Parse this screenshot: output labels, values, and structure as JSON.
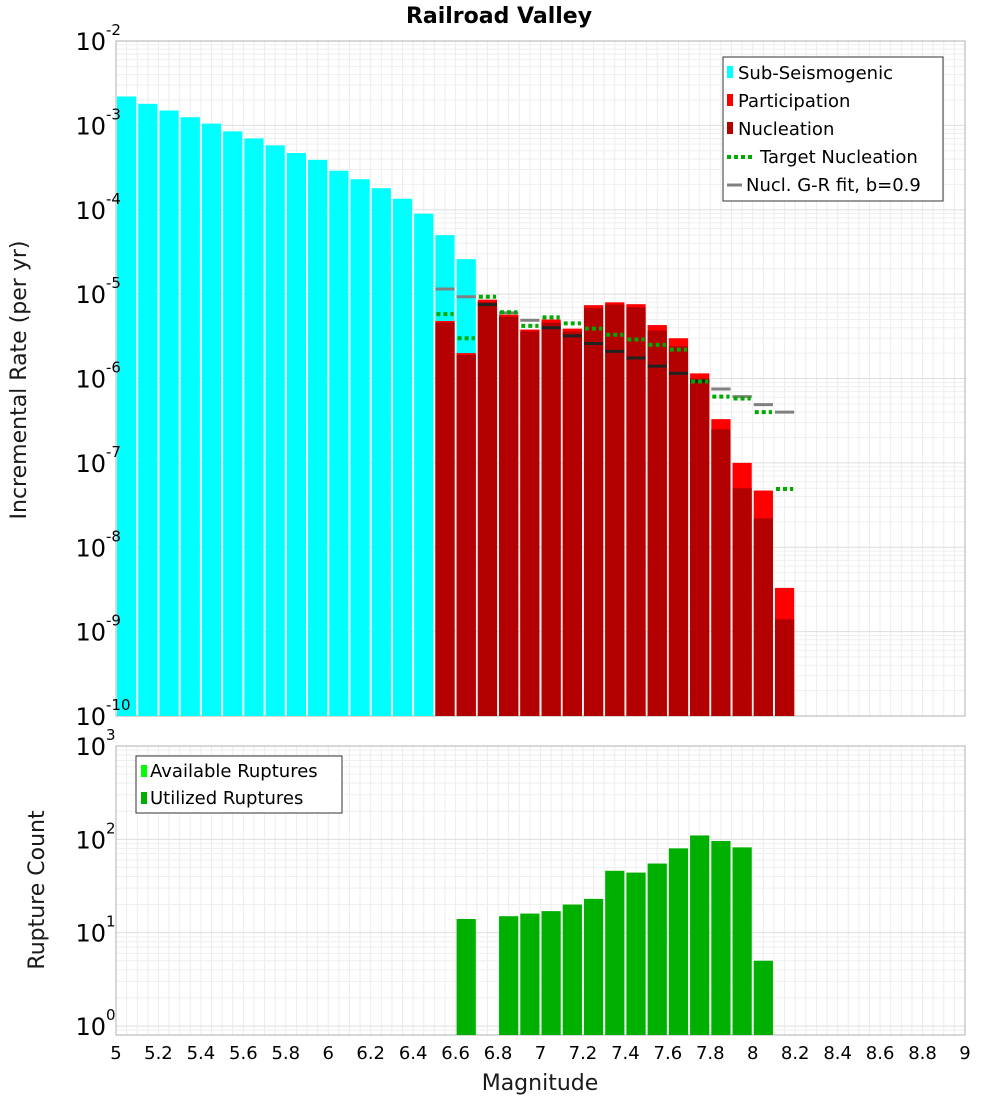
{
  "chart_data": [
    {
      "type": "bar",
      "title": "Railroad Valley",
      "ylabel": "Incremental Rate (per yr)",
      "yscale": "log",
      "ylim": [
        1e-10,
        0.01
      ],
      "xlim": [
        5,
        9
      ],
      "bin_width": 0.1,
      "grid": true,
      "legend_position": "top-right",
      "legend": [
        "Sub-Seismogenic",
        "Participation",
        "Nucleation",
        "Target Nucleation",
        "Nucl. G-R fit, b=0.9"
      ],
      "colors": {
        "sub_seismogenic": "#00ffff",
        "participation": "#ff0000",
        "nucleation": "#b30000",
        "target_nucleation": "#00aa00",
        "gr_fit": "#808080"
      },
      "series": [
        {
          "name": "Sub-Seismogenic",
          "x": [
            5.05,
            5.15,
            5.25,
            5.35,
            5.45,
            5.55,
            5.65,
            5.75,
            5.85,
            5.95,
            6.05,
            6.15,
            6.25,
            6.35,
            6.45,
            6.55,
            6.65
          ],
          "values": [
            0.0022,
            0.0018,
            0.0015,
            0.00125,
            0.00105,
            0.00085,
            0.0007,
            0.00058,
            0.00047,
            0.00039,
            0.00029,
            0.00023,
            0.00018,
            0.000135,
            9e-05,
            5e-05,
            2.6e-05
          ]
        },
        {
          "name": "Participation",
          "x": [
            6.55,
            6.65,
            6.75,
            6.85,
            6.95,
            7.05,
            7.15,
            7.25,
            7.35,
            7.45,
            7.55,
            7.65,
            7.75,
            7.85,
            7.95,
            8.05,
            8.15
          ],
          "values": [
            4.8e-06,
            2e-06,
            8.6e-06,
            5.7e-06,
            3.8e-06,
            5e-06,
            3.9e-06,
            7.4e-06,
            8e-06,
            7.6e-06,
            4.3e-06,
            3e-06,
            1.15e-06,
            3.3e-07,
            1e-07,
            4.7e-08,
            3.3e-09
          ]
        },
        {
          "name": "Nucleation",
          "x": [
            6.55,
            6.65,
            6.75,
            6.85,
            6.95,
            7.05,
            7.15,
            7.25,
            7.35,
            7.45,
            7.55,
            7.65,
            7.75,
            7.85,
            7.95,
            8.05,
            8.15
          ],
          "values": [
            4.6e-06,
            1.9e-06,
            8.1e-06,
            5.4e-06,
            3.6e-06,
            4.6e-06,
            3.6e-06,
            6.8e-06,
            7.5e-06,
            7e-06,
            3.7e-06,
            2.4e-06,
            1e-06,
            2.5e-07,
            5e-08,
            2.2e-08,
            1.4e-09
          ]
        },
        {
          "name": "Target Nucleation",
          "x": [
            6.55,
            6.65,
            6.75,
            6.85,
            6.95,
            7.05,
            7.15,
            7.25,
            7.35,
            7.45,
            7.55,
            7.65,
            7.75,
            7.85,
            7.95,
            8.05,
            8.15
          ],
          "values": [
            5.8e-06,
            3e-06,
            9.3e-06,
            6.1e-06,
            4.2e-06,
            5.3e-06,
            4.5e-06,
            3.9e-06,
            3.3e-06,
            2.9e-06,
            2.5e-06,
            2.2e-06,
            9.2e-07,
            6.1e-07,
            5.8e-07,
            4e-07,
            4.9e-08
          ]
        },
        {
          "name": "Nucl. G-R fit, b=0.9",
          "x": [
            6.55,
            6.65,
            6.75,
            6.85,
            6.95,
            7.05,
            7.15,
            7.25,
            7.35,
            7.45,
            7.55,
            7.65,
            7.75,
            7.85,
            7.95,
            8.05,
            8.15
          ],
          "values": [
            1.15e-05,
            9.3e-06,
            7.5e-06,
            6e-06,
            4.9e-06,
            4e-06,
            3.2e-06,
            2.6e-06,
            2.1e-06,
            1.75e-06,
            1.4e-06,
            1.15e-06,
            9.3e-07,
            7.5e-07,
            6.1e-07,
            4.9e-07,
            4e-07
          ]
        }
      ]
    },
    {
      "type": "bar",
      "ylabel": "Rupture Count",
      "xlabel": "Magnitude",
      "yscale": "log",
      "ylim": [
        0.8,
        1000
      ],
      "xlim": [
        5,
        9
      ],
      "bin_width": 0.1,
      "grid": true,
      "legend_position": "top-left",
      "legend": [
        "Available Ruptures",
        "Utilized Ruptures"
      ],
      "colors": {
        "available": "#00ff00",
        "utilized": "#00b000"
      },
      "x_ticks": [
        "5",
        "5.2",
        "5.4",
        "5.6",
        "5.8",
        "6",
        "6.2",
        "6.4",
        "6.6",
        "6.8",
        "7",
        "7.2",
        "7.4",
        "7.6",
        "7.8",
        "8",
        "8.2",
        "8.4",
        "8.6",
        "8.8",
        "9"
      ],
      "series": [
        {
          "name": "Utilized Ruptures",
          "x": [
            6.65,
            6.85,
            6.95,
            7.05,
            7.15,
            7.25,
            7.35,
            7.45,
            7.55,
            7.65,
            7.75,
            7.85,
            7.95,
            8.05
          ],
          "values": [
            14,
            15,
            16,
            17,
            20,
            23,
            46,
            44,
            55,
            80,
            110,
            96,
            82,
            5
          ]
        }
      ]
    }
  ]
}
